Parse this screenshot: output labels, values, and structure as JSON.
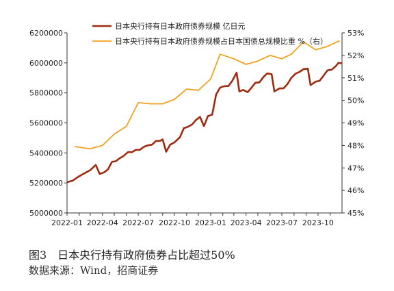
{
  "chart_data": {
    "type": "line",
    "x": [
      "2022-01",
      "2022-02",
      "2022-03",
      "2022-04",
      "2022-05",
      "2022-06",
      "2022-07",
      "2022-08",
      "2022-09",
      "2022-10",
      "2022-11",
      "2022-12",
      "2023-01",
      "2023-02",
      "2023-03",
      "2023-04",
      "2023-05",
      "2023-06",
      "2023-07",
      "2023-08",
      "2023-09",
      "2023-10",
      "2023-11"
    ],
    "x_ticks": [
      "2022-01",
      "2022-04",
      "2022-07",
      "2022-10",
      "2023-01",
      "2023-04",
      "2023-07",
      "2023-10"
    ],
    "left_axis": {
      "ticks": [
        "5000000",
        "5200000",
        "5400000",
        "5600000",
        "5800000",
        "6000000",
        "6200000"
      ],
      "ylim": [
        5000000,
        6200000
      ]
    },
    "right_axis": {
      "ticks": [
        "45%",
        "46%",
        "47%",
        "48%",
        "49%",
        "50%",
        "51%",
        "52%",
        "53%"
      ],
      "ylim": [
        45,
        53
      ]
    },
    "series": [
      {
        "name": "日本央行持有日本政府债券规模 亿日元",
        "axis": "left",
        "color": "#9e2a0f",
        "points": [
          [
            "2022-01-01",
            5205000
          ],
          [
            "2022-01-15",
            5215000
          ],
          [
            "2022-02-01",
            5245000
          ],
          [
            "2022-02-15",
            5265000
          ],
          [
            "2022-03-01",
            5285000
          ],
          [
            "2022-03-15",
            5320000
          ],
          [
            "2022-03-25",
            5260000
          ],
          [
            "2022-04-05",
            5270000
          ],
          [
            "2022-04-15",
            5290000
          ],
          [
            "2022-04-25",
            5340000
          ],
          [
            "2022-05-05",
            5345000
          ],
          [
            "2022-05-15",
            5365000
          ],
          [
            "2022-05-25",
            5380000
          ],
          [
            "2022-06-05",
            5405000
          ],
          [
            "2022-06-15",
            5405000
          ],
          [
            "2022-06-25",
            5420000
          ],
          [
            "2022-07-05",
            5420000
          ],
          [
            "2022-07-15",
            5440000
          ],
          [
            "2022-07-25",
            5450000
          ],
          [
            "2022-08-05",
            5455000
          ],
          [
            "2022-08-15",
            5480000
          ],
          [
            "2022-08-25",
            5480000
          ],
          [
            "2022-09-01",
            5490000
          ],
          [
            "2022-09-10",
            5408000
          ],
          [
            "2022-09-20",
            5455000
          ],
          [
            "2022-10-01",
            5470000
          ],
          [
            "2022-10-15",
            5505000
          ],
          [
            "2022-10-25",
            5565000
          ],
          [
            "2022-11-05",
            5575000
          ],
          [
            "2022-11-15",
            5590000
          ],
          [
            "2022-11-25",
            5620000
          ],
          [
            "2022-12-05",
            5640000
          ],
          [
            "2022-12-15",
            5578000
          ],
          [
            "2022-12-25",
            5645000
          ],
          [
            "2023-01-05",
            5655000
          ],
          [
            "2023-01-15",
            5790000
          ],
          [
            "2023-01-25",
            5835000
          ],
          [
            "2023-02-05",
            5845000
          ],
          [
            "2023-02-15",
            5845000
          ],
          [
            "2023-02-25",
            5880000
          ],
          [
            "2023-03-08",
            5935000
          ],
          [
            "2023-03-15",
            5810000
          ],
          [
            "2023-03-25",
            5820000
          ],
          [
            "2023-04-05",
            5805000
          ],
          [
            "2023-04-15",
            5835000
          ],
          [
            "2023-04-25",
            5868000
          ],
          [
            "2023-05-05",
            5870000
          ],
          [
            "2023-05-15",
            5905000
          ],
          [
            "2023-05-25",
            5930000
          ],
          [
            "2023-06-05",
            5925000
          ],
          [
            "2023-06-12",
            5810000
          ],
          [
            "2023-06-25",
            5830000
          ],
          [
            "2023-07-05",
            5830000
          ],
          [
            "2023-07-15",
            5858000
          ],
          [
            "2023-07-25",
            5900000
          ],
          [
            "2023-08-05",
            5928000
          ],
          [
            "2023-08-15",
            5940000
          ],
          [
            "2023-08-25",
            5958000
          ],
          [
            "2023-09-05",
            5962000
          ],
          [
            "2023-09-12",
            5852000
          ],
          [
            "2023-09-25",
            5875000
          ],
          [
            "2023-10-05",
            5880000
          ],
          [
            "2023-10-15",
            5915000
          ],
          [
            "2023-10-25",
            5950000
          ],
          [
            "2023-11-05",
            5955000
          ],
          [
            "2023-11-15",
            5978000
          ],
          [
            "2023-11-22",
            6000000
          ],
          [
            "2023-12-01",
            5997000
          ]
        ]
      },
      {
        "name": "日本央行持有日本政府债券规模占日本国债总规模比重 %（右）",
        "axis": "right",
        "color": "#f2a11e",
        "points": [
          [
            "2022-01-20",
            47.95
          ],
          [
            "2022-03-01",
            47.85
          ],
          [
            "2022-04-01",
            48.0
          ],
          [
            "2022-05-01",
            48.5
          ],
          [
            "2022-06-01",
            48.85
          ],
          [
            "2022-07-01",
            49.9
          ],
          [
            "2022-08-01",
            49.85
          ],
          [
            "2022-09-01",
            49.85
          ],
          [
            "2022-10-01",
            50.05
          ],
          [
            "2022-11-01",
            50.5
          ],
          [
            "2022-12-01",
            50.45
          ],
          [
            "2023-01-01",
            50.95
          ],
          [
            "2023-01-25",
            52.05
          ],
          [
            "2023-03-01",
            51.85
          ],
          [
            "2023-04-01",
            51.6
          ],
          [
            "2023-05-01",
            51.75
          ],
          [
            "2023-06-01",
            52.0
          ],
          [
            "2023-07-01",
            51.85
          ],
          [
            "2023-07-25",
            52.05
          ],
          [
            "2023-08-25",
            52.6
          ],
          [
            "2023-09-25",
            52.25
          ],
          [
            "2023-10-25",
            52.4
          ],
          [
            "2023-11-25",
            52.65
          ]
        ]
      }
    ],
    "legend_position": "top"
  },
  "caption": {
    "title": "图3　日本央行持有政府债券占比超过50%",
    "source": "数据来源：Wind，招商证券"
  }
}
